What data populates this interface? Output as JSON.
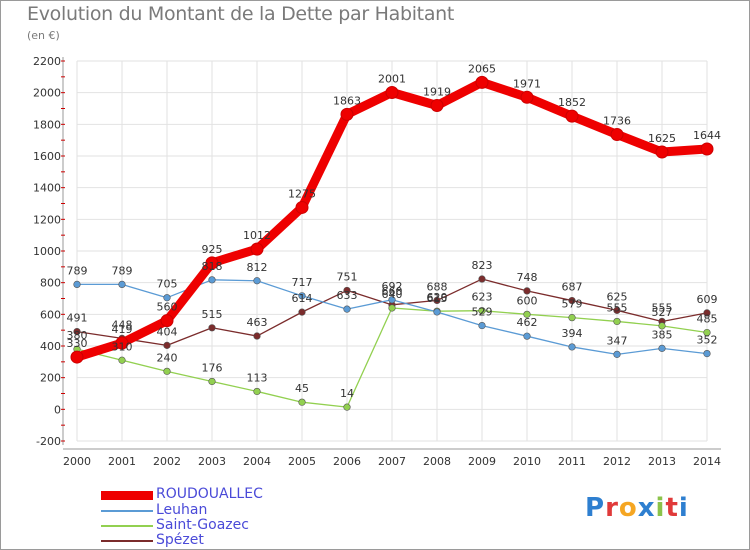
{
  "chart_data": {
    "type": "line",
    "title": "Evolution du Montant de la Dette par Habitant",
    "subtitle": "(en €)",
    "x": [
      "2000",
      "2001",
      "2002",
      "2003",
      "2004",
      "2005",
      "2006",
      "2007",
      "2008",
      "2009",
      "2010",
      "2011",
      "2012",
      "2013",
      "2014"
    ],
    "ylim": [
      -200,
      2200
    ],
    "yticks": [
      "-200",
      "0",
      "200",
      "400",
      "600",
      "800",
      "1000",
      "1200",
      "1400",
      "1600",
      "1800",
      "2000",
      "2200"
    ],
    "grid": true,
    "legend_position": "bottom-left",
    "series": [
      {
        "name": "ROUDOUALLEC",
        "color": "#ee0000",
        "values": [
          330,
          419,
          560,
          925,
          1012,
          1275,
          1863,
          2001,
          1919,
          2065,
          1971,
          1852,
          1736,
          1625,
          1644
        ]
      },
      {
        "name": "Leuhan",
        "color": "#5b9bd5",
        "values": [
          789,
          789,
          705,
          818,
          812,
          717,
          633,
          692,
          615,
          529,
          462,
          394,
          347,
          385,
          352
        ]
      },
      {
        "name": "Saint-Goazec",
        "color": "#92d050",
        "values": [
          380,
          310,
          240,
          176,
          113,
          45,
          14,
          640,
          620,
          623,
          600,
          579,
          555,
          527,
          485
        ]
      },
      {
        "name": "Spézet",
        "color": "#7b2c2c",
        "values": [
          491,
          448,
          404,
          515,
          463,
          614,
          751,
          660,
          688,
          823,
          748,
          687,
          625,
          555,
          609
        ]
      }
    ],
    "labels": {
      "ROUDOUALLEC": [
        "330",
        "419",
        "560",
        "925",
        "1012",
        "1275",
        "1863",
        "2001",
        "1919",
        "2065",
        "1971",
        "1852",
        "1736",
        "1625",
        "1644"
      ],
      "Leuhan": [
        "789",
        "789",
        "705",
        "818",
        "812",
        "717",
        "633",
        "692",
        "615",
        "529",
        "462",
        "394",
        "347",
        "385",
        "352"
      ],
      "Saint-Goazec": [
        "380",
        "310",
        "240",
        "176",
        "113",
        "45",
        "14",
        "640",
        "620",
        "623",
        "600",
        "579",
        "555",
        "527",
        "485"
      ],
      "Spézet": [
        "491",
        "448",
        "404",
        "515",
        "463",
        "614",
        "751",
        "660",
        "688",
        "823",
        "748",
        "687",
        "625",
        "555",
        "609"
      ]
    }
  },
  "logo": {
    "text": "Proxiti"
  }
}
